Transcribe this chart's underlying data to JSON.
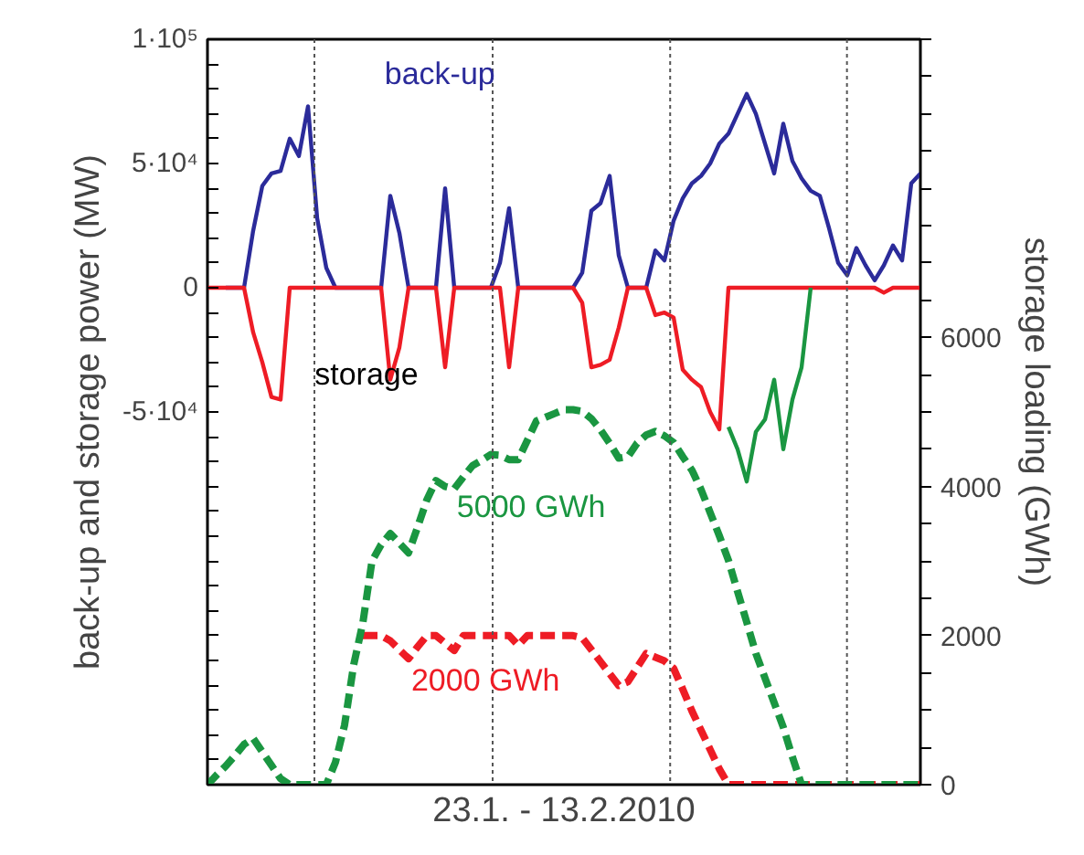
{
  "chart_data": {
    "type": "line",
    "xlabel": "23.1. - 13.2.2010",
    "ylabel": "back-up and storage power (MW)",
    "y2label": "storage loading (GWh)",
    "categories": [
      null,
      null,
      null,
      null,
      null,
      null,
      null,
      null,
      null,
      null,
      null,
      null,
      null,
      null,
      null,
      null,
      null,
      null,
      null,
      null,
      null,
      null,
      null,
      null,
      null,
      null,
      null,
      null,
      null,
      null,
      null,
      null,
      null,
      null,
      null,
      null,
      null,
      null,
      null,
      null,
      null,
      null,
      null,
      null,
      null,
      null,
      null,
      null,
      null,
      null,
      null,
      null,
      null,
      null,
      null,
      null,
      null,
      null,
      null,
      null,
      null,
      null,
      null,
      null,
      null,
      null,
      null,
      null,
      null,
      null,
      null,
      null,
      null,
      null,
      null,
      null,
      null,
      null,
      null
    ],
    "ylim": [
      -200000,
      100000
    ],
    "y2lim": [
      0,
      10000
    ],
    "yticks": [
      {
        "value": -200000,
        "label": null
      },
      {
        "value": -190000,
        "label": null
      },
      {
        "value": -180000,
        "label": null
      },
      {
        "value": -170000,
        "label": null
      },
      {
        "value": -160000,
        "label": null
      },
      {
        "value": -150000,
        "label": null
      },
      {
        "value": -140000,
        "label": null
      },
      {
        "value": -130000,
        "label": null
      },
      {
        "value": -120000,
        "label": null
      },
      {
        "value": -110000,
        "label": null
      },
      {
        "value": -100000,
        "label": null
      },
      {
        "value": -90000,
        "label": null
      },
      {
        "value": -80000,
        "label": null
      },
      {
        "value": -70000,
        "label": null
      },
      {
        "value": -60000,
        "label": null
      },
      {
        "value": -50000,
        "label": "-5·10⁴"
      },
      {
        "value": -40000,
        "label": null
      },
      {
        "value": -30000,
        "label": null
      },
      {
        "value": -20000,
        "label": null
      },
      {
        "value": -10000,
        "label": null
      },
      {
        "value": 0,
        "label": "0"
      },
      {
        "value": 10000,
        "label": null
      },
      {
        "value": 20000,
        "label": null
      },
      {
        "value": 30000,
        "label": null
      },
      {
        "value": 40000,
        "label": null
      },
      {
        "value": 50000,
        "label": "5·10⁴"
      },
      {
        "value": 60000,
        "label": null
      },
      {
        "value": 70000,
        "label": null
      },
      {
        "value": 80000,
        "label": null
      },
      {
        "value": 90000,
        "label": null
      },
      {
        "value": 100000,
        "label": "1·10⁵"
      }
    ],
    "y2ticks": [
      0,
      {
        "value": 500,
        "label": null
      },
      {
        "value": 1000,
        "label": null
      },
      {
        "value": 1500,
        "label": null
      },
      2000,
      {
        "value": 2500,
        "label": null
      },
      {
        "value": 3000,
        "label": null
      },
      {
        "value": 3500,
        "label": null
      },
      4000,
      {
        "value": 4500,
        "label": null
      },
      {
        "value": 5000,
        "label": null
      },
      {
        "value": 5500,
        "label": null
      },
      6000,
      {
        "value": 6500,
        "label": null
      },
      {
        "value": 7000,
        "label": null
      },
      {
        "value": 7500,
        "label": null
      },
      {
        "value": 8000,
        "label": null
      },
      {
        "value": 8500,
        "label": null
      },
      {
        "value": 9000,
        "label": null
      },
      {
        "value": 9500,
        "label": null
      },
      {
        "value": 10000,
        "label": null
      }
    ],
    "tick_labels": "y",
    "series": [
      {
        "name": "2000 GWh",
        "color": "#ee1c25",
        "line_style": "dashed",
        "axis": "y2",
        "values": [
          null,
          null,
          null,
          null,
          null,
          null,
          null,
          null,
          null,
          null,
          null,
          null,
          null,
          null,
          null,
          null,
          null,
          2000,
          2000,
          2000,
          1930,
          1810,
          1690,
          1850,
          2000,
          2000,
          1900,
          1800,
          2000,
          2000,
          2000,
          2000,
          2000,
          2000,
          1870,
          2000,
          2000,
          2000,
          2000,
          2000,
          2000,
          1970,
          1810,
          1650,
          1490,
          1330,
          1380,
          1570,
          1760,
          1710,
          1660,
          1560,
          1280,
          990,
          730,
          470,
          210,
          0,
          0,
          0,
          0,
          0,
          0,
          0,
          0,
          0,
          0,
          0,
          0,
          0,
          0,
          0,
          0,
          0,
          0,
          0,
          0,
          0,
          0
        ]
      },
      {
        "name": "5000 GWh",
        "color": "#1a9641",
        "line_style": "dashed",
        "axis": "y2",
        "values": [
          0,
          130,
          250,
          390,
          540,
          620,
          440,
          260,
          80,
          0,
          0,
          0,
          0,
          0,
          300,
          800,
          1610,
          2170,
          3000,
          3220,
          3370,
          3240,
          3110,
          3460,
          3820,
          4080,
          4000,
          3970,
          4130,
          4280,
          4350,
          4430,
          4420,
          4360,
          4360,
          4620,
          4880,
          4930,
          4980,
          5030,
          5030,
          5010,
          4910,
          4760,
          4580,
          4380,
          4400,
          4580,
          4690,
          4740,
          4680,
          4590,
          4400,
          4220,
          3960,
          3650,
          3340,
          3010,
          2590,
          2180,
          1760,
          1430,
          1100,
          770,
          370,
          0,
          0,
          0,
          0,
          0,
          0,
          0,
          0,
          0,
          0,
          0,
          0,
          0,
          0
        ]
      },
      {
        "name": "back-up",
        "color": "#2b2b9a",
        "values": [
          null,
          null,
          0,
          0,
          0,
          23000,
          41000,
          46000,
          47000,
          60000,
          53000,
          73000,
          28000,
          8000,
          0,
          0,
          0,
          0,
          0,
          0,
          37000,
          22000,
          0,
          0,
          0,
          0,
          40000,
          0,
          0,
          0,
          0,
          0,
          10000,
          32000,
          0,
          0,
          0,
          0,
          0,
          0,
          0,
          6000,
          31000,
          34000,
          45000,
          13000,
          0,
          0,
          0,
          15000,
          11000,
          27000,
          36000,
          42000,
          45000,
          50000,
          58000,
          62000,
          70000,
          78000,
          70000,
          58000,
          46000,
          66000,
          51000,
          44000,
          39000,
          37000,
          24000,
          10000,
          5000,
          16000,
          9000,
          3000,
          9000,
          17000,
          11000,
          42000,
          46000
        ]
      },
      {
        "color": "#ee1c25",
        "values": [
          0,
          0,
          0,
          0,
          0,
          -18000,
          -30000,
          -44000,
          -45000,
          0,
          0,
          0,
          0,
          0,
          0,
          0,
          0,
          0,
          0,
          0,
          -37000,
          -24000,
          0,
          0,
          0,
          0,
          -32000,
          0,
          0,
          0,
          0,
          0,
          0,
          -32000,
          0,
          0,
          0,
          0,
          0,
          0,
          0,
          -6000,
          -32000,
          -31000,
          -29000,
          -16000,
          0,
          0,
          0,
          -11000,
          -10000,
          -12000,
          -33000,
          -37000,
          -40000,
          -50000,
          -57000,
          0,
          0,
          0,
          0,
          0,
          0,
          0,
          0,
          0,
          0,
          0,
          0,
          0,
          0,
          0,
          0,
          0,
          -2000,
          0,
          0,
          0,
          0
        ]
      },
      {
        "color": "#1a9641",
        "values": [
          null,
          null,
          null,
          null,
          null,
          null,
          null,
          null,
          null,
          null,
          null,
          null,
          null,
          null,
          null,
          null,
          null,
          null,
          null,
          null,
          null,
          null,
          null,
          null,
          null,
          null,
          null,
          null,
          null,
          null,
          null,
          null,
          null,
          null,
          null,
          null,
          null,
          null,
          null,
          null,
          null,
          null,
          null,
          null,
          null,
          null,
          null,
          null,
          null,
          null,
          null,
          null,
          null,
          null,
          null,
          null,
          null,
          -56000,
          -65000,
          -78000,
          -58000,
          -53000,
          -37000,
          -65000,
          -45000,
          -32000,
          0,
          null,
          null,
          null,
          null,
          null,
          null,
          null,
          null,
          null,
          null,
          null,
          null
        ]
      }
    ],
    "annotations": [
      "storage"
    ]
  }
}
